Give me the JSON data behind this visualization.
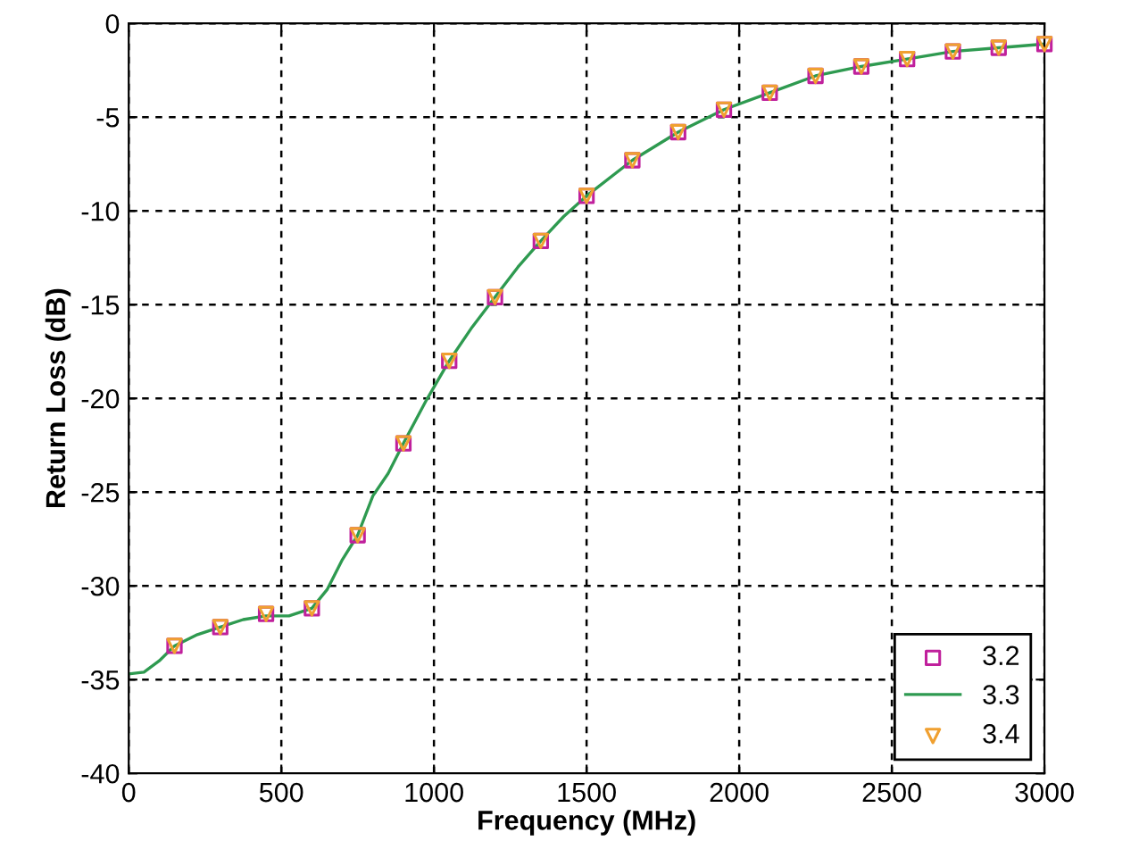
{
  "chart_data": {
    "type": "line",
    "xlabel": "Frequency (MHz)",
    "ylabel": "Return Loss (dB)",
    "xlim": [
      0,
      3000
    ],
    "ylim": [
      -40,
      0
    ],
    "xticks": [
      0,
      500,
      1000,
      1500,
      2000,
      2500,
      3000
    ],
    "yticks": [
      -40,
      -35,
      -30,
      -25,
      -20,
      -15,
      -10,
      -5,
      0
    ],
    "grid": true,
    "legend": "bottom right",
    "series": [
      {
        "name": "3.2",
        "type": "scatter",
        "marker": "square",
        "color": "#c0209c",
        "x": [
          150,
          300,
          450,
          600,
          750,
          900,
          1050,
          1200,
          1350,
          1500,
          1650,
          1800,
          1950,
          2100,
          2250,
          2400,
          2550,
          2700,
          2850,
          3000
        ],
        "values": [
          -33.2,
          -32.2,
          -31.5,
          -31.2,
          -27.3,
          -22.4,
          -18.0,
          -14.6,
          -11.6,
          -9.2,
          -7.3,
          -5.8,
          -4.6,
          -3.7,
          -2.8,
          -2.3,
          -1.9,
          -1.5,
          -1.3,
          -1.1
        ]
      },
      {
        "name": "3.3",
        "marker": "none",
        "line_style": "solid",
        "color": "#2e9a50",
        "x": [
          0,
          50,
          100,
          150,
          225,
          300,
          375,
          450,
          525,
          600,
          650,
          700,
          750,
          800,
          850,
          900,
          975,
          1050,
          1125,
          1200,
          1275,
          1350,
          1425,
          1500,
          1650,
          1800,
          1950,
          2100,
          2250,
          2400,
          2550,
          2700,
          2850,
          3000
        ],
        "values": [
          -34.7,
          -34.6,
          -34.0,
          -33.2,
          -32.6,
          -32.2,
          -31.8,
          -31.6,
          -31.6,
          -31.2,
          -30.2,
          -28.6,
          -27.3,
          -25.2,
          -24.0,
          -22.4,
          -20.1,
          -18.0,
          -16.2,
          -14.6,
          -13.0,
          -11.6,
          -10.3,
          -9.2,
          -7.3,
          -5.8,
          -4.6,
          -3.7,
          -2.8,
          -2.3,
          -1.9,
          -1.5,
          -1.3,
          -1.1
        ]
      },
      {
        "name": "3.4",
        "type": "scatter",
        "marker": "triangle",
        "color": "#f0a030",
        "x": [
          150,
          300,
          450,
          600,
          750,
          900,
          1050,
          1200,
          1350,
          1500,
          1650,
          1800,
          1950,
          2100,
          2250,
          2400,
          2550,
          2700,
          2850,
          3000
        ],
        "values": [
          -33.2,
          -32.2,
          -31.5,
          -31.2,
          -27.3,
          -22.4,
          -18.0,
          -14.6,
          -11.6,
          -9.2,
          -7.3,
          -5.8,
          -4.6,
          -3.7,
          -2.8,
          -2.3,
          -1.9,
          -1.5,
          -1.3,
          -1.1
        ]
      }
    ]
  }
}
